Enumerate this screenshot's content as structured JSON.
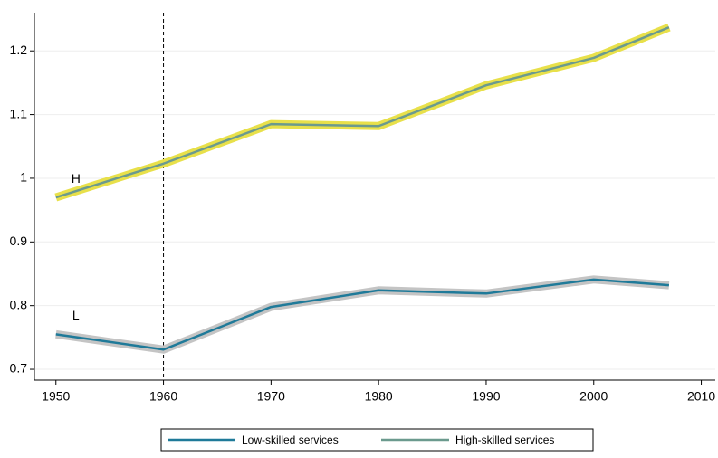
{
  "chart_data": {
    "type": "line",
    "x": [
      1950,
      1960,
      1970,
      1980,
      1990,
      2000,
      2007
    ],
    "series": [
      {
        "name": "Low-skilled services",
        "label": "L",
        "color": "#1f7a99",
        "band_color": "#c4c4c4",
        "values": [
          0.755,
          0.731,
          0.798,
          0.824,
          0.819,
          0.841,
          0.832
        ]
      },
      {
        "name": "High-skilled services",
        "label": "H",
        "color": "#6b9a8e",
        "band_color": "#e8e04a",
        "values": [
          0.97,
          1.023,
          1.085,
          1.082,
          1.146,
          1.189,
          1.237
        ]
      }
    ],
    "xlim": [
      1948,
      2011.3
    ],
    "xticks": [
      1950,
      1960,
      1970,
      1980,
      1990,
      2000,
      2010
    ],
    "ylim": [
      0.683,
      1.26
    ],
    "yticks": [
      0.7,
      0.8,
      0.9,
      1,
      1.1,
      1.2
    ],
    "grid": true,
    "vline": 1960,
    "legend": "bottom"
  }
}
